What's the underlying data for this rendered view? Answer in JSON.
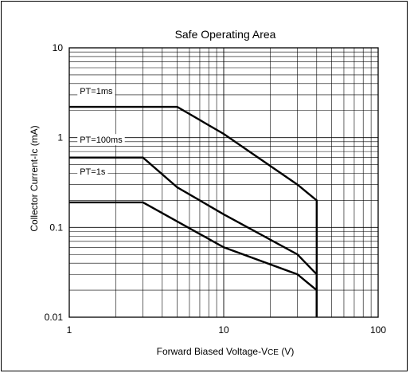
{
  "chart_data": {
    "type": "line",
    "title": "Safe Operating Area",
    "xlabel": "Forward Biased Voltage-VCE (V)",
    "xlabel_parts": {
      "main": "Forward Biased Voltage-V",
      "sub": "CE",
      "unit": " (V)"
    },
    "ylabel": "Collector Current-Ic (mA)",
    "x_scale": "log",
    "y_scale": "log",
    "xlim": [
      1,
      100
    ],
    "ylim": [
      0.01,
      10
    ],
    "x_ticks": [
      {
        "value": 1,
        "label": "1"
      },
      {
        "value": 10,
        "label": "10"
      },
      {
        "value": 100,
        "label": "100"
      }
    ],
    "y_ticks": [
      {
        "value": 10,
        "label": "10"
      },
      {
        "value": 1,
        "label": "1"
      },
      {
        "value": 0.1,
        "label": "0.1"
      },
      {
        "value": 0.01,
        "label": "0.01"
      }
    ],
    "grid": true,
    "series": [
      {
        "name": "PT=1ms",
        "x": [
          1,
          5,
          10,
          30,
          40,
          40
        ],
        "y": [
          2.2,
          2.2,
          1.1,
          0.3,
          0.2,
          0.01
        ]
      },
      {
        "name": "PT=100ms",
        "x": [
          1,
          3,
          5,
          10,
          30,
          40,
          40
        ],
        "y": [
          0.6,
          0.6,
          0.28,
          0.14,
          0.05,
          0.03,
          0.01
        ]
      },
      {
        "name": "PT=1s",
        "x": [
          1,
          3,
          10,
          30,
          40,
          40
        ],
        "y": [
          0.19,
          0.19,
          0.06,
          0.03,
          0.02,
          0.01
        ]
      }
    ],
    "series_labels": [
      {
        "text": "PT=1ms",
        "x": 1.17,
        "y": 3.3
      },
      {
        "text": "PT=100ms",
        "x": 1.17,
        "y": 0.95
      },
      {
        "text": "PT=1s",
        "x": 1.17,
        "y": 0.42
      }
    ]
  }
}
